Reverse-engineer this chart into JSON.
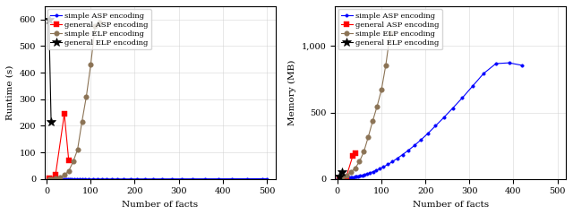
{
  "left": {
    "xlabel": "Number of facts",
    "ylabel": "Runtime (s)",
    "ylim": [
      0,
      650
    ],
    "xlim": [
      -5,
      520
    ],
    "yticks": [
      0,
      100,
      200,
      300,
      400,
      500,
      600
    ],
    "xticks": [
      0,
      100,
      200,
      300,
      400,
      500
    ],
    "simple_asp": {
      "x": [
        1,
        3,
        5,
        7,
        9,
        11,
        13,
        15,
        17,
        19,
        21,
        23,
        25,
        27,
        30,
        33,
        36,
        40,
        44,
        48,
        52,
        57,
        62,
        68,
        74,
        81,
        88,
        96,
        105,
        115,
        125,
        136,
        148,
        161,
        175,
        190,
        206,
        223,
        242,
        262,
        284,
        307,
        332,
        360,
        390,
        420,
        455,
        490,
        500
      ],
      "y": [
        0.01,
        0.01,
        0.01,
        0.01,
        0.01,
        0.01,
        0.01,
        0.01,
        0.01,
        0.01,
        0.01,
        0.01,
        0.01,
        0.01,
        0.01,
        0.01,
        0.01,
        0.01,
        0.01,
        0.02,
        0.02,
        0.02,
        0.02,
        0.02,
        0.02,
        0.03,
        0.03,
        0.03,
        0.04,
        0.05,
        0.06,
        0.07,
        0.08,
        0.09,
        0.11,
        0.13,
        0.15,
        0.17,
        0.2,
        0.23,
        0.27,
        0.31,
        0.36,
        0.41,
        0.48,
        0.55,
        0.65,
        0.75,
        0.8
      ],
      "color": "blue",
      "marker": "o",
      "markersize": 2.5,
      "label": "simple ASP encoding"
    },
    "general_asp": {
      "x": [
        5,
        20,
        40,
        50
      ],
      "y": [
        1,
        15,
        245,
        70
      ],
      "color": "red",
      "marker": "s",
      "markersize": 4,
      "label": "general ASP encoding"
    },
    "simple_elp": {
      "x": [
        5,
        10,
        20,
        30,
        40,
        50,
        60,
        70,
        80,
        90,
        100,
        110,
        120
      ],
      "y": [
        0.3,
        0.7,
        2,
        6,
        15,
        30,
        65,
        110,
        215,
        310,
        430,
        575,
        590
      ],
      "color": "#8B7355",
      "marker": "o",
      "markersize": 4,
      "label": "simple ELP encoding"
    },
    "general_elp": {
      "x": [
        5,
        10
      ],
      "y": [
        600,
        215
      ],
      "color": "black",
      "marker": "*",
      "markersize": 7,
      "label": "general ELP encoding"
    }
  },
  "right": {
    "xlabel": "Number of facts",
    "ylabel": "Memory (MB)",
    "ylim": [
      0,
      1300
    ],
    "xlim": [
      -5,
      520
    ],
    "yticks": [
      0,
      500,
      1000
    ],
    "ytick_labels": [
      "0",
      "500",
      "1,000"
    ],
    "xticks": [
      0,
      100,
      200,
      300,
      400,
      500
    ],
    "simple_asp": {
      "x": [
        1,
        3,
        5,
        7,
        9,
        11,
        13,
        15,
        17,
        19,
        21,
        23,
        25,
        27,
        30,
        33,
        36,
        40,
        44,
        48,
        52,
        57,
        62,
        68,
        74,
        81,
        88,
        96,
        105,
        115,
        125,
        136,
        148,
        161,
        175,
        190,
        206,
        223,
        242,
        262,
        284,
        307,
        332,
        360,
        390,
        420
      ],
      "y": [
        4,
        4,
        5,
        5,
        6,
        6,
        7,
        7,
        8,
        8,
        9,
        9,
        10,
        10,
        11,
        12,
        14,
        16,
        18,
        21,
        24,
        28,
        33,
        39,
        46,
        55,
        65,
        77,
        92,
        110,
        130,
        155,
        183,
        215,
        252,
        295,
        344,
        400,
        463,
        533,
        611,
        698,
        793,
        868,
        874,
        855
      ],
      "color": "blue",
      "marker": "o",
      "markersize": 2.5,
      "label": "simple ASP encoding"
    },
    "general_asp": {
      "x": [
        5,
        20,
        35,
        40
      ],
      "y": [
        5,
        15,
        175,
        195
      ],
      "color": "red",
      "marker": "s",
      "markersize": 4,
      "label": "general ASP encoding"
    },
    "simple_elp": {
      "x": [
        5,
        10,
        20,
        30,
        40,
        50,
        60,
        70,
        80,
        90,
        100,
        110,
        120
      ],
      "y": [
        8,
        12,
        25,
        50,
        80,
        130,
        205,
        315,
        435,
        545,
        670,
        858,
        1100
      ],
      "color": "#8B7355",
      "marker": "o",
      "markersize": 4,
      "label": "simple ELP encoding"
    },
    "general_elp": {
      "x": [
        5,
        10
      ],
      "y": [
        22,
        50
      ],
      "color": "black",
      "marker": "*",
      "markersize": 7,
      "label": "general ELP encoding"
    }
  }
}
